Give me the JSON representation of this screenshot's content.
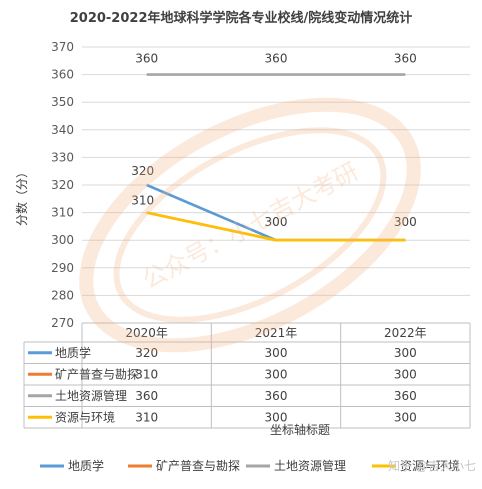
{
  "chart_data": {
    "type": "line",
    "title": "2020-2022年地球科学学院各专业校线/院线变动情况统计",
    "xlabel": "坐标轴标题",
    "ylabel": "分数（分）",
    "ylim": [
      270,
      370
    ],
    "yticks": [
      270,
      280,
      290,
      300,
      310,
      320,
      330,
      340,
      350,
      360,
      370
    ],
    "categories": [
      "2020年",
      "2021年",
      "2022年"
    ],
    "series": [
      {
        "name": "地质学",
        "values": [
          320,
          300,
          300
        ],
        "color": "#5b9bd5",
        "show_labels": true
      },
      {
        "name": "矿产普查与勘探",
        "values": [
          310,
          300,
          300
        ],
        "color": "#ed7d31",
        "show_labels": false
      },
      {
        "name": "土地资源管理",
        "values": [
          360,
          360,
          360
        ],
        "color": "#a5a5a5",
        "show_labels": true
      },
      {
        "name": "资源与环境",
        "values": [
          310,
          300,
          300
        ],
        "color": "#ffc000",
        "show_labels": true
      }
    ],
    "data_table": true,
    "grid": true,
    "legend_position": "bottom"
  },
  "watermark": {
    "text": "公众号：小七吉大考研",
    "corner_text": "知乎 @吉大小七"
  }
}
